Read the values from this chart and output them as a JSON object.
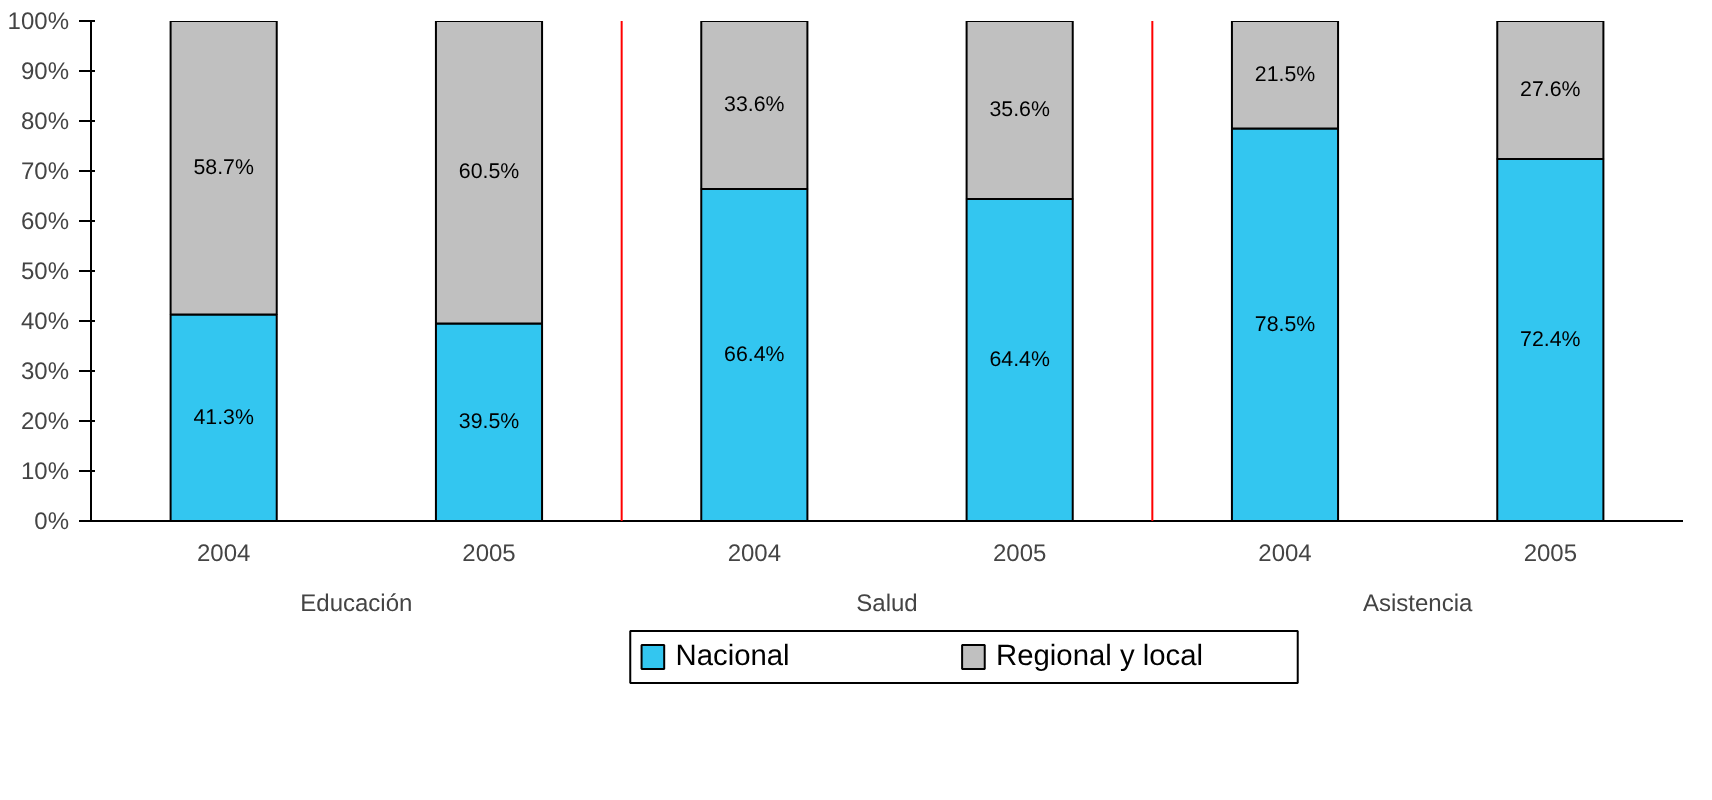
{
  "chart_data": {
    "type": "bar",
    "stacked": true,
    "categories": [
      "2004",
      "2005",
      "2004",
      "2005",
      "2004",
      "2005"
    ],
    "series": [
      {
        "name": "Nacional",
        "color": "#33c6f0",
        "values": [
          41.3,
          39.5,
          66.4,
          64.4,
          78.5,
          72.4
        ],
        "value_labels": [
          "41.3%",
          "39.5%",
          "66.4%",
          "64.4%",
          "78.5%",
          "72.4%"
        ]
      },
      {
        "name": "Regional y local",
        "color": "#c0c0c0",
        "values": [
          58.7,
          60.5,
          33.6,
          35.6,
          21.5,
          27.6
        ],
        "value_labels": [
          "58.7%",
          "60.5%",
          "33.6%",
          "35.6%",
          "21.5%",
          "27.6%"
        ]
      }
    ],
    "annotations": [
      "Educación",
      "Salud",
      "Asistencia"
    ],
    "ylim": [
      0,
      100
    ],
    "yticks": [
      {
        "value": 0,
        "label": "0%"
      },
      {
        "value": 10,
        "label": "10%"
      },
      {
        "value": 20,
        "label": "20%"
      },
      {
        "value": 30,
        "label": "30%"
      },
      {
        "value": 40,
        "label": "40%"
      },
      {
        "value": 50,
        "label": "50%"
      },
      {
        "value": 60,
        "label": "60%"
      },
      {
        "value": 70,
        "label": "70%"
      },
      {
        "value": 80,
        "label": "80%"
      },
      {
        "value": 90,
        "label": "90%"
      },
      {
        "value": 100,
        "label": "100%"
      }
    ],
    "legend": "bottom",
    "grid": false
  }
}
